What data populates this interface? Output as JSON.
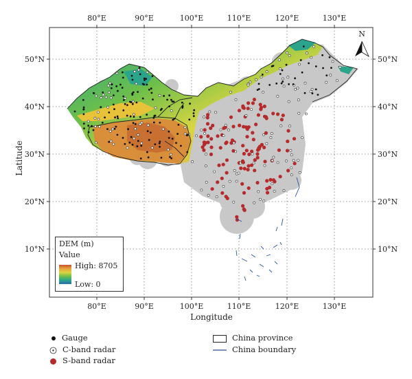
{
  "map": {
    "north_label": "N",
    "x_axis_title": "Longitude",
    "y_axis_title": "Latitude",
    "lon_ticks": [
      "80°E",
      "90°E",
      "100°E",
      "110°E",
      "120°E",
      "130°E"
    ],
    "lat_ticks": [
      "50°N",
      "40°N",
      "30°N",
      "20°N",
      "10°N"
    ]
  },
  "dem_legend": {
    "title": "DEM (m)",
    "value_label": "Value",
    "high_label": "High: 8705",
    "low_label": "Low: 0",
    "colors": [
      "#c2522f",
      "#e8a33a",
      "#d9d542",
      "#6cbf4a",
      "#2aa58c",
      "#2a6db0"
    ]
  },
  "legend": {
    "gauge": "Gauge",
    "c_band": "C-band radar",
    "s_band": "S-band radar",
    "province": "China province",
    "boundary": "China boundary"
  },
  "colors": {
    "coverage": "#c8c8c8",
    "s_band": "#b52a2a",
    "gauge": "#111111",
    "boundary": "#2a4f9a"
  }
}
